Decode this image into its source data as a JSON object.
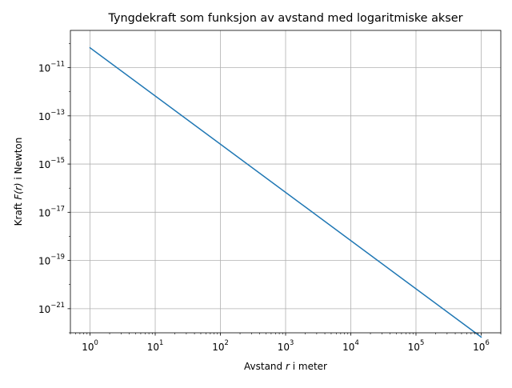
{
  "chart_data": {
    "type": "line",
    "title": "Tyngdekraft som funksjon av avstand med logaritmiske akser",
    "xlabel": {
      "prefix": "Avstand ",
      "var": "r",
      "suffix": " i meter"
    },
    "ylabel": {
      "prefix": "Kraft ",
      "var": "F(r)",
      "suffix": " i Newton"
    },
    "xscale": "log",
    "yscale": "log",
    "xlim": [
      0.5,
      2000000
    ],
    "ylim": [
      1e-22,
      3.5e-10
    ],
    "grid": true,
    "x_ticks": [
      {
        "base": "10",
        "exp": "0",
        "value": 1
      },
      {
        "base": "10",
        "exp": "1",
        "value": 10
      },
      {
        "base": "10",
        "exp": "2",
        "value": 100
      },
      {
        "base": "10",
        "exp": "3",
        "value": 1000
      },
      {
        "base": "10",
        "exp": "4",
        "value": 10000
      },
      {
        "base": "10",
        "exp": "5",
        "value": 100000
      },
      {
        "base": "10",
        "exp": "6",
        "value": 1000000
      }
    ],
    "y_ticks": [
      {
        "base": "10",
        "exp": "−11",
        "value": 1e-11
      },
      {
        "base": "10",
        "exp": "−13",
        "value": 1e-13
      },
      {
        "base": "10",
        "exp": "−15",
        "value": 1e-15
      },
      {
        "base": "10",
        "exp": "−17",
        "value": 1e-17
      },
      {
        "base": "10",
        "exp": "−19",
        "value": 1e-19
      },
      {
        "base": "10",
        "exp": "−21",
        "value": 1e-21
      }
    ],
    "series": [
      {
        "color": "#1f77b4",
        "x": [
          1,
          1000000
        ],
        "y": [
          6.674e-11,
          6.674e-23
        ]
      }
    ]
  }
}
